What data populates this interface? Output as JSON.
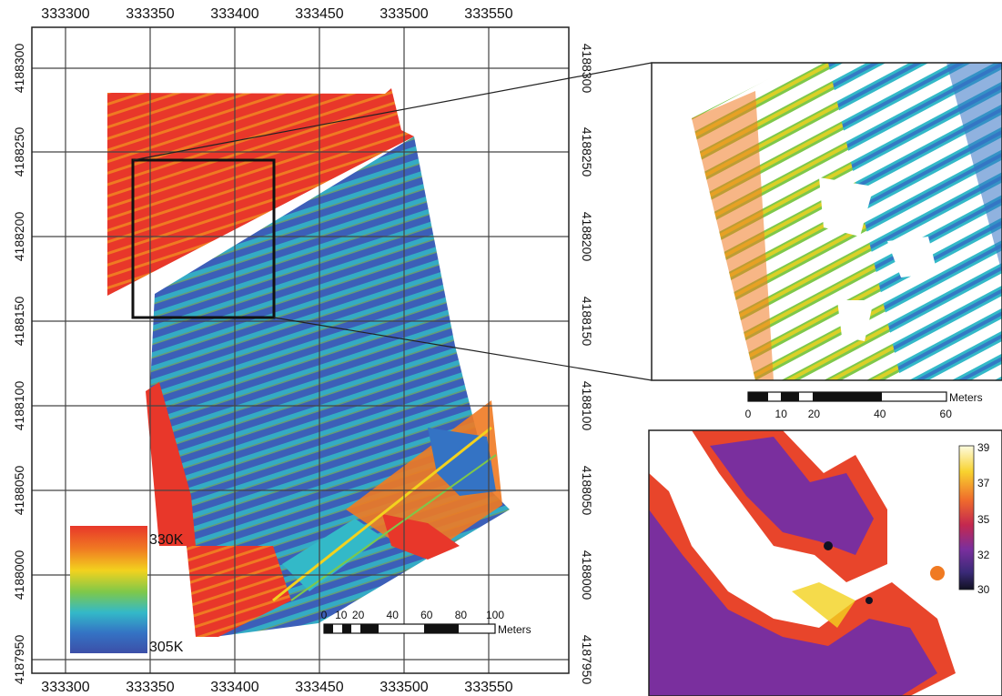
{
  "main_map": {
    "x_ticks": [
      "333300",
      "333350",
      "333400",
      "333450",
      "333500",
      "333550"
    ],
    "y_ticks": [
      "4188300",
      "4188250",
      "4188200",
      "4188150",
      "4188100",
      "4188050",
      "4188000",
      "4187950"
    ],
    "legend": {
      "max_label": "330K",
      "min_label": "305K",
      "colors": [
        "#e8372a",
        "#f07a22",
        "#f3d21e",
        "#7ec84a",
        "#33b9c8",
        "#3473c4",
        "#3c4fa8"
      ]
    },
    "scalebar": {
      "labels": [
        "0",
        "10",
        "20",
        "40",
        "60",
        "80",
        "100"
      ],
      "unit": "Meters"
    }
  },
  "inset_top": {
    "scalebar": {
      "labels": [
        "0",
        "10",
        "20",
        "40",
        "60"
      ],
      "unit": "Meters"
    }
  },
  "inset_bottom": {
    "colorbar": {
      "labels": [
        "39",
        "37",
        "35",
        "32",
        "30"
      ],
      "colors": [
        "#fdfce0",
        "#f8d22e",
        "#ef6a2c",
        "#c4284f",
        "#7a2f9e",
        "#3a2a78",
        "#111122"
      ]
    }
  },
  "colors": {
    "hot": "#e8372a",
    "warm": "#f07a22",
    "mid": "#7ec84a",
    "cool": "#33b9c8",
    "cold": "#3c5fb8",
    "grid": "#555555"
  }
}
